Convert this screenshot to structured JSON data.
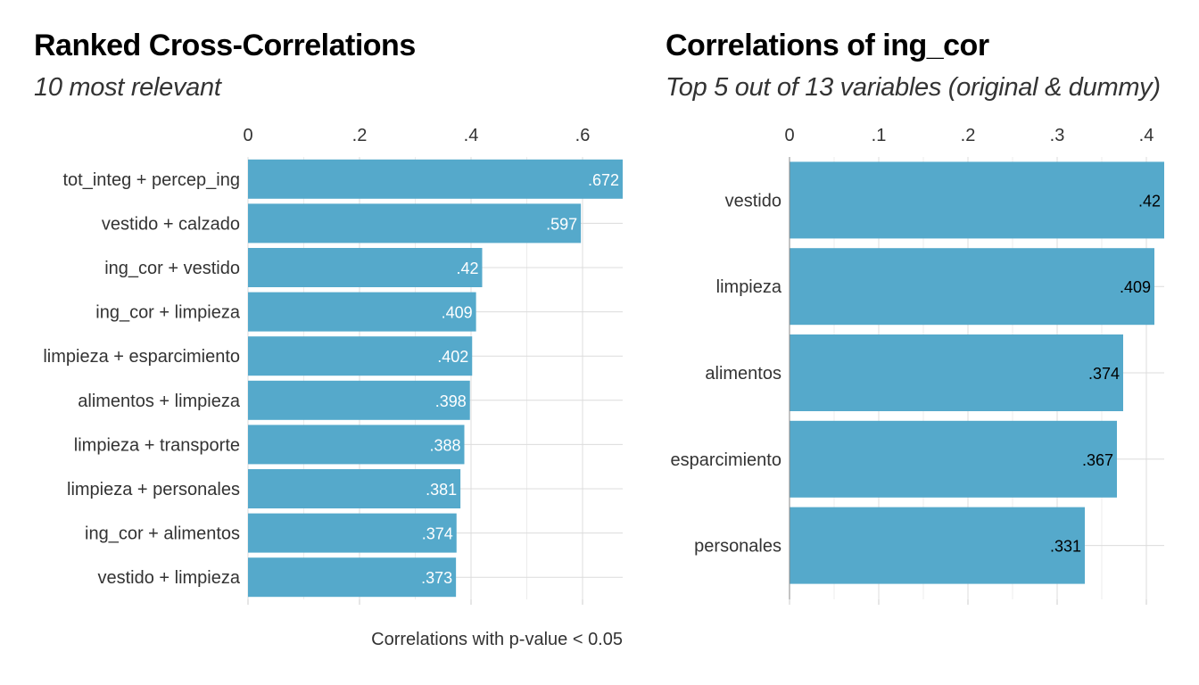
{
  "colors": {
    "bar": "#55a9cb",
    "grid": "#dcdcdc",
    "text": "#333333"
  },
  "chart_data": [
    {
      "type": "bar",
      "orientation": "horizontal",
      "title": "Ranked Cross-Correlations",
      "subtitle": "10 most relevant",
      "caption": "Correlations with p-value < 0.05",
      "categories": [
        "tot_integ + percep_ing",
        "vestido + calzado",
        "ing_cor + vestido",
        "ing_cor + limpieza",
        "limpieza + esparcimiento",
        "alimentos + limpieza",
        "limpieza + transporte",
        "limpieza + personales",
        "ing_cor + alimentos",
        "vestido + limpieza"
      ],
      "values": [
        0.672,
        0.597,
        0.42,
        0.409,
        0.402,
        0.398,
        0.388,
        0.381,
        0.374,
        0.373
      ],
      "value_labels": [
        ".672",
        ".597",
        ".42",
        ".409",
        ".402",
        ".398",
        ".388",
        ".381",
        ".374",
        ".373"
      ],
      "x_ticks": [
        0,
        0.2,
        0.4,
        0.6
      ],
      "x_tick_labels": [
        "0",
        ".2",
        ".4",
        ".6"
      ],
      "xlim": [
        0,
        0.672
      ],
      "axis_position": "top",
      "label_color": "#ffffff",
      "grid": true
    },
    {
      "type": "bar",
      "orientation": "horizontal",
      "title": "Correlations of ing_cor",
      "subtitle": "Top 5 out of 13 variables (original & dummy)",
      "caption": "",
      "categories": [
        "vestido",
        "limpieza",
        "alimentos",
        "esparcimiento",
        "personales"
      ],
      "values": [
        0.42,
        0.409,
        0.374,
        0.367,
        0.331
      ],
      "value_labels": [
        ".42",
        ".409",
        ".374",
        ".367",
        ".331"
      ],
      "x_ticks": [
        0,
        0.1,
        0.2,
        0.3,
        0.4
      ],
      "x_tick_labels": [
        "0",
        ".1",
        ".2",
        ".3",
        ".4"
      ],
      "xlim": [
        0,
        0.42
      ],
      "axis_position": "top",
      "label_color": "#000000",
      "grid": true
    }
  ]
}
